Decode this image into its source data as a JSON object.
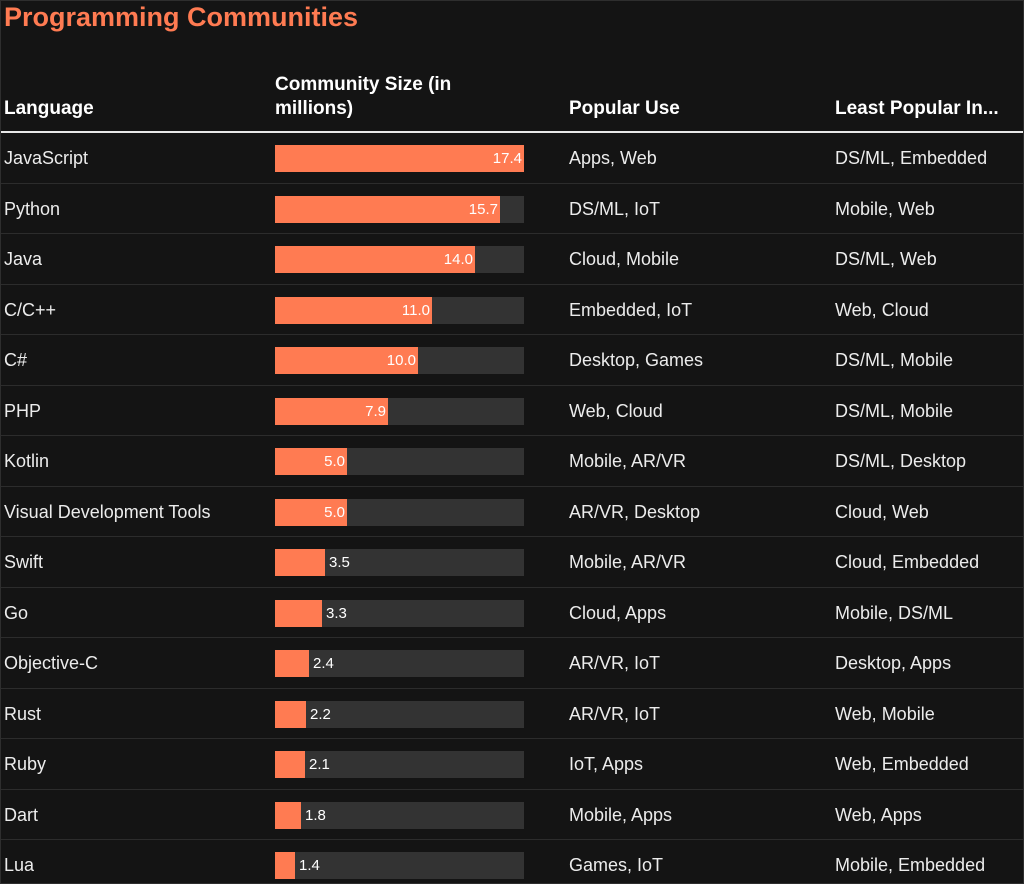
{
  "title": "Programming Communities",
  "chart_data": {
    "type": "table",
    "title": "Programming Communities",
    "columns": [
      "Language",
      "Community Size (in millions)",
      "Popular Use",
      "Least Popular In..."
    ],
    "bar_color": "#ff7b52",
    "bar_track_color": "#333333",
    "xlim": [
      0,
      17.4
    ],
    "rows": [
      {
        "language": "JavaScript",
        "size": 17.4,
        "size_label": "17.4",
        "popular": "Apps, Web",
        "least": "DS/ML, Embedded"
      },
      {
        "language": "Python",
        "size": 15.7,
        "size_label": "15.7",
        "popular": "DS/ML, IoT",
        "least": "Mobile, Web"
      },
      {
        "language": "Java",
        "size": 14.0,
        "size_label": "14.0",
        "popular": "Cloud, Mobile",
        "least": "DS/ML, Web"
      },
      {
        "language": "C/C++",
        "size": 11.0,
        "size_label": "11.0",
        "popular": "Embedded, IoT",
        "least": "Web, Cloud"
      },
      {
        "language": "C#",
        "size": 10.0,
        "size_label": "10.0",
        "popular": "Desktop, Games",
        "least": "DS/ML, Mobile"
      },
      {
        "language": "PHP",
        "size": 7.9,
        "size_label": "7.9",
        "popular": "Web, Cloud",
        "least": "DS/ML, Mobile"
      },
      {
        "language": "Kotlin",
        "size": 5.0,
        "size_label": "5.0",
        "popular": "Mobile, AR/VR",
        "least": "DS/ML, Desktop"
      },
      {
        "language": "Visual Development Tools",
        "size": 5.0,
        "size_label": "5.0",
        "popular": "AR/VR, Desktop",
        "least": "Cloud, Web"
      },
      {
        "language": "Swift",
        "size": 3.5,
        "size_label": "3.5",
        "popular": "Mobile, AR/VR",
        "least": "Cloud, Embedded"
      },
      {
        "language": "Go",
        "size": 3.3,
        "size_label": "3.3",
        "popular": "Cloud, Apps",
        "least": "Mobile, DS/ML"
      },
      {
        "language": "Objective-C",
        "size": 2.4,
        "size_label": "2.4",
        "popular": "AR/VR, IoT",
        "least": "Desktop, Apps"
      },
      {
        "language": "Rust",
        "size": 2.2,
        "size_label": "2.2",
        "popular": "AR/VR, IoT",
        "least": "Web, Mobile"
      },
      {
        "language": "Ruby",
        "size": 2.1,
        "size_label": "2.1",
        "popular": "IoT, Apps",
        "least": "Web, Embedded"
      },
      {
        "language": "Dart",
        "size": 1.8,
        "size_label": "1.8",
        "popular": "Mobile, Apps",
        "least": "Web, Apps"
      },
      {
        "language": "Lua",
        "size": 1.4,
        "size_label": "1.4",
        "popular": "Games, IoT",
        "least": "Mobile, Embedded"
      }
    ]
  }
}
